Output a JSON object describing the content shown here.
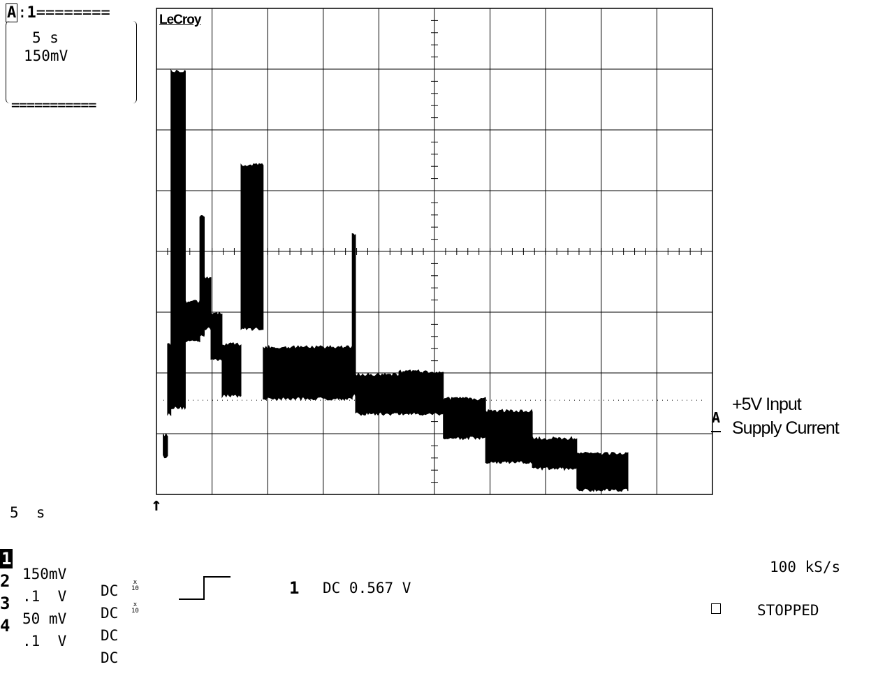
{
  "header": {
    "trace_id": "A",
    "trace_channel": "1",
    "timebase": "5 s",
    "vertical_scale": "150mV",
    "brand": "LeCroy"
  },
  "trace": {
    "label_line1": "+5V Input",
    "label_line2": "Supply Current",
    "marker": "A"
  },
  "bottom": {
    "timebase": "5  s",
    "channels": [
      {
        "num": "1",
        "scale": "150mV",
        "coupling": "DC",
        "x10": ""
      },
      {
        "num": "2",
        "scale": ".1  V",
        "coupling": "DC",
        "x10": ""
      },
      {
        "num": "3",
        "scale": "50 mV",
        "coupling": "DC",
        "x10": "x\n10"
      },
      {
        "num": "4",
        "scale": ".1  V",
        "coupling": "DC",
        "x10": "x\n10"
      }
    ],
    "trigger_channel": "1",
    "trigger_info": "DC 0.567 V",
    "sample_rate": "100 kS/s",
    "status": "STOPPED"
  },
  "chart_data": {
    "type": "line",
    "title": "",
    "xlabel": "",
    "ylabel": "",
    "grid": true,
    "x_divisions": 10,
    "y_divisions": 8,
    "xlim": [
      0,
      50
    ],
    "ylim": [
      -4,
      4
    ],
    "x_units": "s",
    "y_units": "div",
    "series": [
      {
        "segments": [
          {
            "x0": 0.6,
            "x1": 1.0,
            "lo": -3.4,
            "hi": -3.0
          },
          {
            "x0": 1.0,
            "x1": 1.3,
            "lo": -2.7,
            "hi": -1.5
          },
          {
            "x0": 1.3,
            "x1": 2.6,
            "lo": -2.6,
            "hi": 3.0
          },
          {
            "x0": 2.6,
            "x1": 3.9,
            "lo": -1.5,
            "hi": -0.8
          },
          {
            "x0": 3.9,
            "x1": 4.3,
            "lo": -1.4,
            "hi": 0.6
          },
          {
            "x0": 4.3,
            "x1": 4.9,
            "lo": -1.3,
            "hi": -0.4
          },
          {
            "x0": 4.9,
            "x1": 5.9,
            "lo": -1.8,
            "hi": -1.0
          },
          {
            "x0": 5.9,
            "x1": 7.6,
            "lo": -2.4,
            "hi": -1.5
          },
          {
            "x0": 7.6,
            "x1": 9.6,
            "lo": -1.3,
            "hi": 1.45
          },
          {
            "x0": 9.6,
            "x1": 17.6,
            "lo": -2.45,
            "hi": -1.55
          },
          {
            "x0": 17.6,
            "x1": 17.9,
            "lo": -2.4,
            "hi": 0.3
          },
          {
            "x0": 17.9,
            "x1": 21.8,
            "lo": -2.7,
            "hi": -2.0
          },
          {
            "x0": 21.8,
            "x1": 25.8,
            "lo": -2.7,
            "hi": -1.95
          },
          {
            "x0": 25.8,
            "x1": 29.6,
            "lo": -3.1,
            "hi": -2.4
          },
          {
            "x0": 29.6,
            "x1": 33.8,
            "lo": -3.5,
            "hi": -2.6
          },
          {
            "x0": 33.8,
            "x1": 37.8,
            "lo": -3.6,
            "hi": -3.05
          },
          {
            "x0": 37.8,
            "x1": 42.4,
            "lo": -3.95,
            "hi": -3.3
          }
        ]
      }
    ]
  }
}
